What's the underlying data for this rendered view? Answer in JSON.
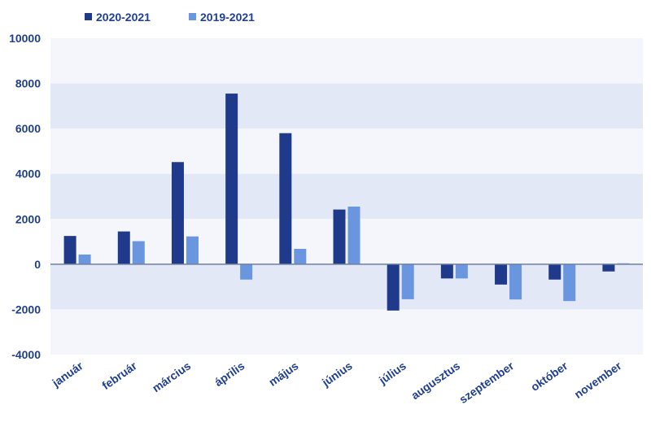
{
  "chart_data": {
    "type": "bar",
    "categories": [
      "január",
      "február",
      "március",
      "április",
      "május",
      "június",
      "július",
      "augusztus",
      "szeptember",
      "október",
      "november"
    ],
    "series": [
      {
        "name": "2020-2021",
        "color": "#1f3a8a",
        "values": [
          1250,
          1450,
          4520,
          7550,
          5800,
          2420,
          -2050,
          -630,
          -900,
          -680,
          -320
        ]
      },
      {
        "name": "2019-2021",
        "color": "#6a96e0",
        "values": [
          430,
          1020,
          1230,
          -680,
          680,
          2550,
          -1550,
          -630,
          -1560,
          -1630,
          40
        ]
      }
    ],
    "yticks": [
      "10000",
      "8000",
      "6000",
      "4000",
      "2000",
      "0",
      "-2000",
      "-4000"
    ],
    "ylim": [
      -4000,
      10000
    ],
    "title": "",
    "xlabel": "",
    "ylabel": "",
    "legend_position": "top-left",
    "band_colors": [
      "#f4f6fc",
      "#e3e8f6"
    ],
    "zero_line_color": "#6f7f9f"
  }
}
